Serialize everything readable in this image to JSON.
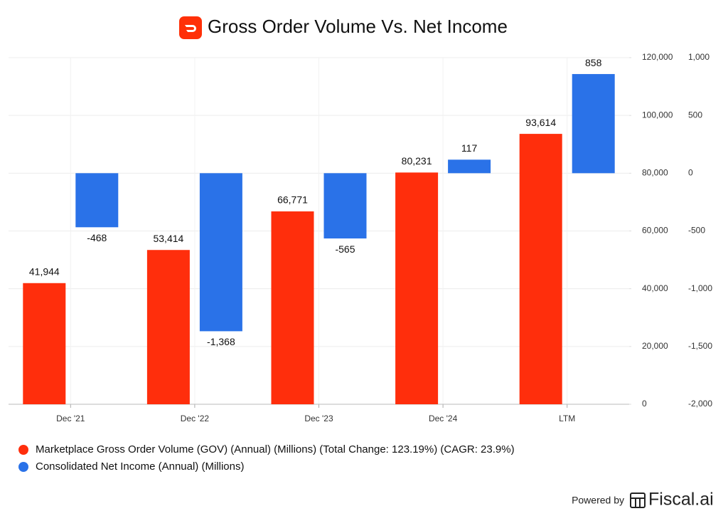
{
  "chart_data": {
    "type": "bar",
    "title": "Gross Order Volume Vs. Net Income",
    "categories": [
      "Dec '21",
      "Dec '22",
      "Dec '23",
      "Dec '24",
      "LTM"
    ],
    "series": [
      {
        "name": "Marketplace Gross Order Volume (GOV) (Annual) (Millions) (Total Change: 123.19%) (CAGR: 23.9%)",
        "color": "#ff2e0c",
        "values": [
          41944,
          53414,
          66771,
          80231,
          93614
        ],
        "value_labels": [
          "41,944",
          "53,414",
          "66,771",
          "80,231",
          "93,614"
        ]
      },
      {
        "name": "Consolidated Net Income (Annual) (Millions)",
        "color": "#2a72e8",
        "axis": "y2",
        "values": [
          -468,
          -1368,
          -565,
          117,
          858
        ],
        "value_labels": [
          "-468",
          "-1,368",
          "-565",
          "117",
          "858"
        ]
      }
    ],
    "ylim": [
      0,
      120000
    ],
    "yticks": [
      0,
      {
        "value": 20000,
        "label": "20,000"
      },
      {
        "value": 40000,
        "label": "40,000"
      },
      {
        "value": 60000,
        "label": "60,000"
      },
      {
        "value": 80000,
        "label": "80,000"
      },
      {
        "value": 100000,
        "label": "100,000"
      },
      {
        "value": 120000,
        "label": "120,000"
      }
    ],
    "y2lim": [
      -2000,
      1000
    ],
    "y2ticks": [
      {
        "value": -2000,
        "label": "-2,000"
      },
      {
        "value": -1500,
        "label": "-1,500"
      },
      {
        "value": -1000,
        "label": "-1,000"
      },
      -500,
      0,
      500,
      {
        "value": 1000,
        "label": "1,000"
      }
    ],
    "grid": true
  },
  "branding": {
    "prefix": "Powered by",
    "name": "Fiscal.ai"
  }
}
